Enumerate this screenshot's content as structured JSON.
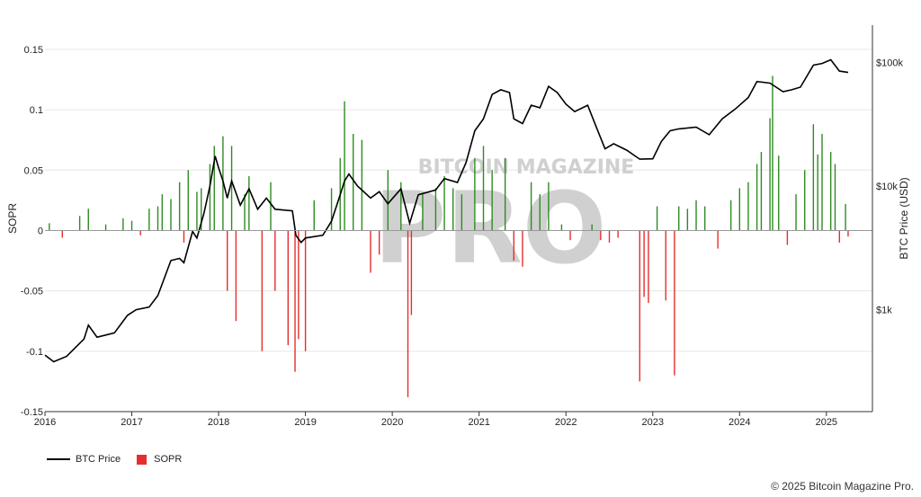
{
  "chart_data": {
    "type": "bar+line",
    "watermark": {
      "top": "BITCOIN MAGAZINE",
      "big": "PRO"
    },
    "xlim": [
      2016.0,
      2025.53
    ],
    "x_ticks": [
      "2016",
      "2017",
      "2018",
      "2019",
      "2020",
      "2021",
      "2022",
      "2023",
      "2024",
      "2025"
    ],
    "left_axis": {
      "label": "SOPR",
      "lim": [
        -0.15,
        0.17
      ],
      "ticks": [
        -0.15,
        -0.1,
        -0.05,
        0,
        0.05,
        0.1,
        0.15
      ],
      "tick_labels": [
        "-0.15",
        "-0.1",
        "-0.05",
        "0",
        "0.05",
        "0.1",
        "0.15"
      ]
    },
    "right_axis": {
      "label": "BTC Price (USD)",
      "scale": "log",
      "lim": [
        150,
        200000
      ],
      "ticks": [
        1000,
        10000,
        100000
      ],
      "tick_labels": [
        "$1k",
        "$10k",
        "$100k"
      ]
    },
    "series": [
      {
        "name": "BTC Price",
        "color": "#000000",
        "axis": "right",
        "points": [
          [
            2016.0,
            430
          ],
          [
            2016.1,
            380
          ],
          [
            2016.25,
            420
          ],
          [
            2016.45,
            580
          ],
          [
            2016.5,
            750
          ],
          [
            2016.6,
            600
          ],
          [
            2016.8,
            650
          ],
          [
            2016.95,
            900
          ],
          [
            2017.05,
            1000
          ],
          [
            2017.2,
            1050
          ],
          [
            2017.3,
            1300
          ],
          [
            2017.45,
            2500
          ],
          [
            2017.55,
            2600
          ],
          [
            2017.6,
            2400
          ],
          [
            2017.7,
            4300
          ],
          [
            2017.75,
            3800
          ],
          [
            2017.83,
            6000
          ],
          [
            2017.9,
            10000
          ],
          [
            2017.96,
            17500
          ],
          [
            2018.0,
            14000
          ],
          [
            2018.05,
            11000
          ],
          [
            2018.1,
            8000
          ],
          [
            2018.15,
            11000
          ],
          [
            2018.25,
            7000
          ],
          [
            2018.35,
            9500
          ],
          [
            2018.45,
            6500
          ],
          [
            2018.55,
            8000
          ],
          [
            2018.65,
            6500
          ],
          [
            2018.85,
            6300
          ],
          [
            2018.89,
            4000
          ],
          [
            2018.95,
            3500
          ],
          [
            2019.0,
            3800
          ],
          [
            2019.2,
            4000
          ],
          [
            2019.3,
            5200
          ],
          [
            2019.4,
            8500
          ],
          [
            2019.45,
            11000
          ],
          [
            2019.5,
            12500
          ],
          [
            2019.6,
            10000
          ],
          [
            2019.75,
            8000
          ],
          [
            2019.85,
            9000
          ],
          [
            2019.95,
            7200
          ],
          [
            2020.1,
            9500
          ],
          [
            2020.2,
            5000
          ],
          [
            2020.3,
            8500
          ],
          [
            2020.5,
            9300
          ],
          [
            2020.6,
            11500
          ],
          [
            2020.75,
            10700
          ],
          [
            2020.85,
            15500
          ],
          [
            2020.95,
            28000
          ],
          [
            2021.05,
            35000
          ],
          [
            2021.15,
            55000
          ],
          [
            2021.25,
            60000
          ],
          [
            2021.35,
            57000
          ],
          [
            2021.4,
            35000
          ],
          [
            2021.5,
            32000
          ],
          [
            2021.6,
            45000
          ],
          [
            2021.7,
            43000
          ],
          [
            2021.8,
            64000
          ],
          [
            2021.9,
            57000
          ],
          [
            2022.0,
            46000
          ],
          [
            2022.1,
            40000
          ],
          [
            2022.25,
            45000
          ],
          [
            2022.35,
            30000
          ],
          [
            2022.45,
            20000
          ],
          [
            2022.55,
            22000
          ],
          [
            2022.7,
            19500
          ],
          [
            2022.85,
            16500
          ],
          [
            2023.0,
            16600
          ],
          [
            2023.1,
            23000
          ],
          [
            2023.2,
            28000
          ],
          [
            2023.3,
            29000
          ],
          [
            2023.5,
            30000
          ],
          [
            2023.65,
            26000
          ],
          [
            2023.8,
            35000
          ],
          [
            2023.95,
            42000
          ],
          [
            2024.1,
            52000
          ],
          [
            2024.2,
            70000
          ],
          [
            2024.35,
            68000
          ],
          [
            2024.5,
            58000
          ],
          [
            2024.6,
            60000
          ],
          [
            2024.7,
            63000
          ],
          [
            2024.85,
            95000
          ],
          [
            2024.95,
            98000
          ],
          [
            2025.05,
            105000
          ],
          [
            2025.15,
            85000
          ],
          [
            2025.25,
            83000
          ]
        ]
      },
      {
        "name": "SOPR",
        "color_pos": "#2e8b22",
        "color_neg": "#e62e2e",
        "axis": "left",
        "points": [
          [
            2016.05,
            0.006
          ],
          [
            2016.2,
            -0.006
          ],
          [
            2016.4,
            0.012
          ],
          [
            2016.5,
            0.018
          ],
          [
            2016.7,
            0.005
          ],
          [
            2016.9,
            0.01
          ],
          [
            2017.0,
            0.008
          ],
          [
            2017.1,
            -0.004
          ],
          [
            2017.2,
            0.018
          ],
          [
            2017.3,
            0.02
          ],
          [
            2017.35,
            0.03
          ],
          [
            2017.45,
            0.026
          ],
          [
            2017.55,
            0.04
          ],
          [
            2017.6,
            -0.01
          ],
          [
            2017.65,
            0.05
          ],
          [
            2017.75,
            0.032
          ],
          [
            2017.8,
            0.035
          ],
          [
            2017.9,
            0.055
          ],
          [
            2017.95,
            0.07
          ],
          [
            2018.05,
            0.078
          ],
          [
            2018.1,
            -0.05
          ],
          [
            2018.15,
            0.07
          ],
          [
            2018.2,
            -0.075
          ],
          [
            2018.3,
            0.03
          ],
          [
            2018.35,
            0.045
          ],
          [
            2018.5,
            -0.1
          ],
          [
            2018.6,
            0.04
          ],
          [
            2018.65,
            -0.05
          ],
          [
            2018.8,
            -0.095
          ],
          [
            2018.88,
            -0.117
          ],
          [
            2018.92,
            -0.09
          ],
          [
            2019.0,
            -0.1
          ],
          [
            2019.1,
            0.025
          ],
          [
            2019.3,
            0.035
          ],
          [
            2019.4,
            0.06
          ],
          [
            2019.45,
            0.107
          ],
          [
            2019.55,
            0.08
          ],
          [
            2019.65,
            0.075
          ],
          [
            2019.75,
            -0.035
          ],
          [
            2019.85,
            -0.02
          ],
          [
            2019.95,
            0.05
          ],
          [
            2020.1,
            0.04
          ],
          [
            2020.18,
            -0.138
          ],
          [
            2020.22,
            -0.07
          ],
          [
            2020.35,
            0.03
          ],
          [
            2020.5,
            0.035
          ],
          [
            2020.6,
            0.045
          ],
          [
            2020.7,
            0.035
          ],
          [
            2020.8,
            0.03
          ],
          [
            2020.95,
            0.06
          ],
          [
            2021.05,
            0.07
          ],
          [
            2021.15,
            0.05
          ],
          [
            2021.3,
            0.06
          ],
          [
            2021.4,
            -0.025
          ],
          [
            2021.5,
            -0.03
          ],
          [
            2021.6,
            0.04
          ],
          [
            2021.7,
            0.03
          ],
          [
            2021.8,
            0.04
          ],
          [
            2021.95,
            0.005
          ],
          [
            2022.05,
            -0.008
          ],
          [
            2022.3,
            0.005
          ],
          [
            2022.4,
            -0.008
          ],
          [
            2022.5,
            -0.01
          ],
          [
            2022.6,
            -0.006
          ],
          [
            2022.85,
            -0.125
          ],
          [
            2022.9,
            -0.055
          ],
          [
            2022.95,
            -0.06
          ],
          [
            2023.15,
            -0.058
          ],
          [
            2023.25,
            -0.12
          ],
          [
            2023.05,
            0.02
          ],
          [
            2023.3,
            0.02
          ],
          [
            2023.4,
            0.018
          ],
          [
            2023.5,
            0.025
          ],
          [
            2023.6,
            0.02
          ],
          [
            2023.75,
            -0.015
          ],
          [
            2023.9,
            0.025
          ],
          [
            2024.0,
            0.035
          ],
          [
            2024.1,
            0.04
          ],
          [
            2024.2,
            0.055
          ],
          [
            2024.25,
            0.065
          ],
          [
            2024.35,
            0.093
          ],
          [
            2024.38,
            0.128
          ],
          [
            2024.45,
            0.062
          ],
          [
            2024.55,
            -0.012
          ],
          [
            2024.65,
            0.03
          ],
          [
            2024.75,
            0.05
          ],
          [
            2024.85,
            0.088
          ],
          [
            2024.9,
            0.063
          ],
          [
            2024.95,
            0.08
          ],
          [
            2025.05,
            0.065
          ],
          [
            2025.1,
            0.055
          ],
          [
            2025.15,
            -0.01
          ],
          [
            2025.22,
            0.022
          ],
          [
            2025.25,
            -0.005
          ]
        ]
      }
    ],
    "legend": [
      {
        "label": "BTC Price",
        "marker": "line",
        "color": "#000000"
      },
      {
        "label": "SOPR",
        "marker": "square",
        "color": "#e62e2e"
      }
    ],
    "grid": true,
    "legend_placement": "bottom-left"
  },
  "footer": "© 2025 Bitcoin Magazine Pro."
}
